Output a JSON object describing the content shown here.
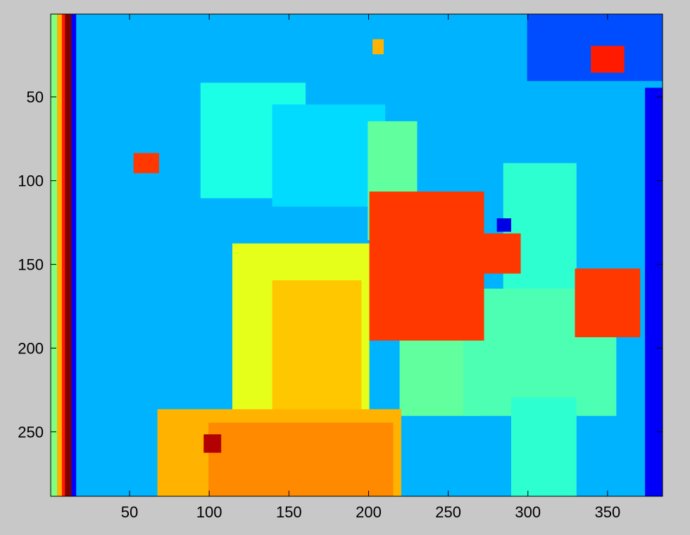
{
  "figure": {
    "background": "#c8c8c8"
  },
  "chart_data": {
    "type": "heatmap",
    "title": "",
    "xlabel": "",
    "ylabel": "",
    "colormap": "jet",
    "xlim": [
      0.5,
      384.5
    ],
    "ylim": [
      0.5,
      288.5
    ],
    "y_reversed": true,
    "grid": false,
    "xticks": [
      50,
      100,
      150,
      200,
      250,
      300,
      350
    ],
    "yticks": [
      50,
      100,
      150,
      200,
      250
    ],
    "xtick_labels": [
      "50",
      "100",
      "150",
      "200",
      "250",
      "300",
      "350"
    ],
    "ytick_labels": [
      "50",
      "100",
      "150",
      "200",
      "250"
    ],
    "background_level": 0.3,
    "regions": [
      {
        "x": [
          1,
          5
        ],
        "y": [
          1,
          288
        ],
        "level": 0.5
      },
      {
        "x": [
          5,
          8
        ],
        "y": [
          1,
          288
        ],
        "level": 0.7
      },
      {
        "x": [
          8,
          10
        ],
        "y": [
          1,
          288
        ],
        "level": 0.85
      },
      {
        "x": [
          10,
          14
        ],
        "y": [
          1,
          288
        ],
        "level": 1.0
      },
      {
        "x": [
          14,
          16
        ],
        "y": [
          1,
          288
        ],
        "level": 0.12
      },
      {
        "x": [
          374,
          384
        ],
        "y": [
          45,
          288
        ],
        "level": 0.12
      },
      {
        "x": [
          300,
          384
        ],
        "y": [
          1,
          40
        ],
        "level": 0.2
      },
      {
        "x": [
          95,
          160
        ],
        "y": [
          42,
          110
        ],
        "level": 0.4
      },
      {
        "x": [
          140,
          210
        ],
        "y": [
          55,
          115
        ],
        "level": 0.34
      },
      {
        "x": [
          200,
          230
        ],
        "y": [
          65,
          135
        ],
        "level": 0.47
      },
      {
        "x": [
          285,
          330
        ],
        "y": [
          90,
          220
        ],
        "level": 0.42
      },
      {
        "x": [
          220,
          270
        ],
        "y": [
          160,
          240
        ],
        "level": 0.47
      },
      {
        "x": [
          260,
          355
        ],
        "y": [
          165,
          240
        ],
        "level": 0.45
      },
      {
        "x": [
          290,
          330
        ],
        "y": [
          230,
          288
        ],
        "level": 0.42
      },
      {
        "x": [
          115,
          200
        ],
        "y": [
          138,
          245
        ],
        "level": 0.6
      },
      {
        "x": [
          140,
          195
        ],
        "y": [
          160,
          240
        ],
        "level": 0.68
      },
      {
        "x": [
          68,
          220
        ],
        "y": [
          237,
          288
        ],
        "level": 0.7
      },
      {
        "x": [
          100,
          215
        ],
        "y": [
          245,
          288
        ],
        "level": 0.74
      },
      {
        "x": [
          201,
          272
        ],
        "y": [
          107,
          195
        ],
        "level": 0.82
      },
      {
        "x": [
          330,
          370
        ],
        "y": [
          153,
          193
        ],
        "level": 0.82
      },
      {
        "x": [
          262,
          295
        ],
        "y": [
          132,
          155
        ],
        "level": 0.82
      },
      {
        "x": [
          53,
          68
        ],
        "y": [
          84,
          95
        ],
        "level": 0.82
      },
      {
        "x": [
          203,
          209
        ],
        "y": [
          16,
          24
        ],
        "level": 0.7
      },
      {
        "x": [
          97,
          107
        ],
        "y": [
          252,
          262
        ],
        "level": 0.95
      },
      {
        "x": [
          281,
          289
        ],
        "y": [
          123,
          130
        ],
        "level": 0.1
      },
      {
        "x": [
          340,
          360
        ],
        "y": [
          20,
          35
        ],
        "level": 0.85
      }
    ]
  }
}
